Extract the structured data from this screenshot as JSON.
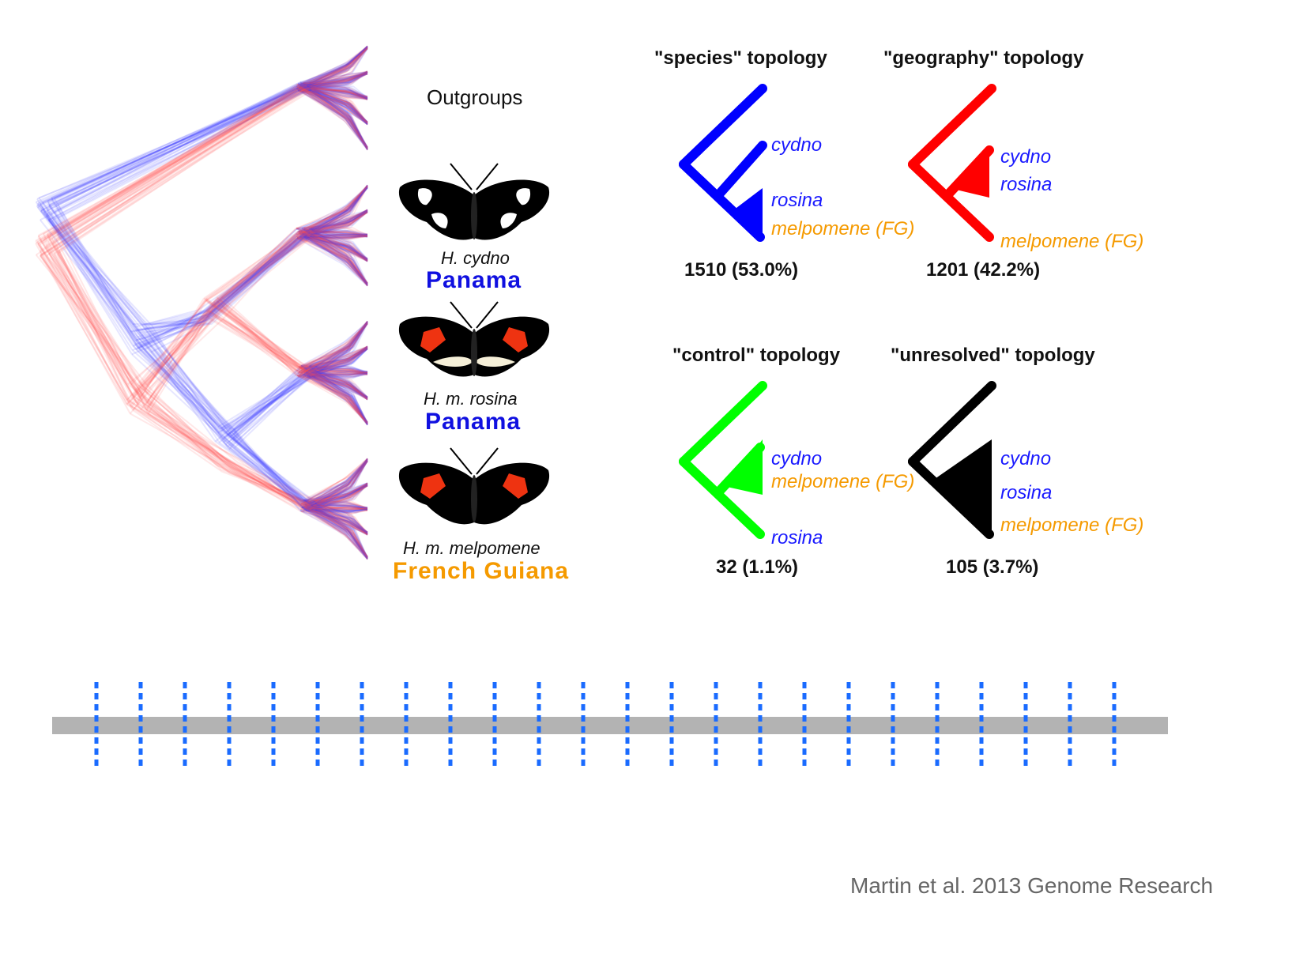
{
  "colors": {
    "species_tree": "#0000ff",
    "geography_tree": "#ff0000",
    "control_tree": "#00ff00",
    "unresolved_tree": "#000000",
    "cydno_label": "#1a1aff",
    "rosina_label": "#1a1aff",
    "melpomene_label": "#f59a00",
    "panama": "#1010e0",
    "french_guiana": "#f59a00",
    "cloud_blue": "#3a3aff",
    "cloud_red": "#ff5050",
    "chromosome": "#b3b3b3",
    "window_marks": "#1a6bff",
    "citation": "#666666"
  },
  "left_panel": {
    "outgroups_label": "Outgroups",
    "taxa": [
      {
        "species": "H. cydno",
        "location": "Panama"
      },
      {
        "species": "H. m. rosina",
        "location": "Panama"
      },
      {
        "species": "H. m. melpomene",
        "location": "French Guiana"
      }
    ]
  },
  "topologies": [
    {
      "id": "species",
      "title": "\"species\" topology",
      "count": "1510 (53.0%)",
      "labels": [
        "cydno",
        "rosina",
        "melpomene (FG)"
      ]
    },
    {
      "id": "geography",
      "title": "\"geography\" topology",
      "count": "1201 (42.2%)",
      "labels": [
        "cydno",
        "rosina",
        "melpomene (FG)"
      ]
    },
    {
      "id": "control",
      "title": "\"control\"  topology",
      "count": "32 (1.1%)",
      "labels": [
        "cydno",
        "melpomene (FG)",
        "rosina"
      ]
    },
    {
      "id": "unresolved",
      "title": "\"unresolved\" topology",
      "count": "105 (3.7%)",
      "labels": [
        "cydno",
        "rosina",
        "melpomene (FG)"
      ]
    }
  ],
  "genome_windows": {
    "count": 24
  },
  "citation": "Martin et al. 2013 Genome Research"
}
